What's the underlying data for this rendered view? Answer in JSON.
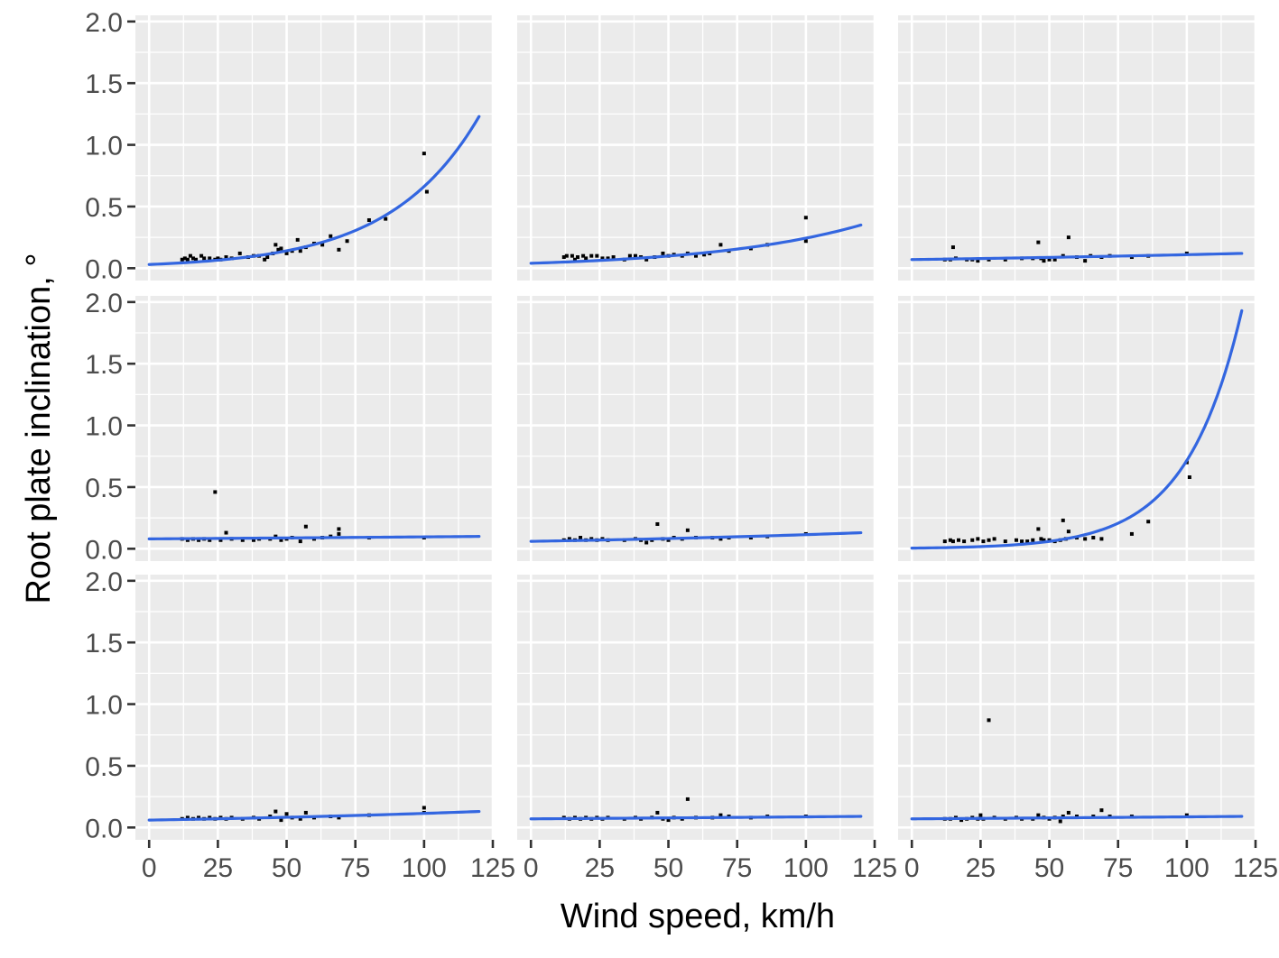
{
  "chart_data": {
    "type": "scatter",
    "layout": "facet-grid-3x3",
    "xlabel": "Wind speed, km/h",
    "ylabel": "Root plate inclination, °",
    "xlim": [
      -5,
      125
    ],
    "ylim": [
      -0.1,
      2.05
    ],
    "x_ticks": [
      0,
      25,
      50,
      75,
      100,
      125
    ],
    "x_tick_labels": [
      "0",
      "25",
      "50",
      "75",
      "100",
      "125"
    ],
    "y_ticks": [
      0.0,
      0.5,
      1.0,
      1.5,
      2.0
    ],
    "y_tick_labels": [
      "0.0",
      "0.5",
      "1.0",
      "1.5",
      "2.0"
    ],
    "grid": true,
    "background": "#ebebeb",
    "point_color": "#000000",
    "line_color": "#3366e0",
    "panels": [
      {
        "row": 0,
        "col": 0,
        "fit": {
          "type": "exponential",
          "x0": 0,
          "y0": 0.03,
          "x1": 120,
          "y1": 1.23
        },
        "points": [
          [
            12,
            0.07
          ],
          [
            13,
            0.08
          ],
          [
            14,
            0.07
          ],
          [
            15,
            0.1
          ],
          [
            16,
            0.08
          ],
          [
            17,
            0.07
          ],
          [
            19,
            0.1
          ],
          [
            20,
            0.08
          ],
          [
            22,
            0.08
          ],
          [
            24,
            0.07
          ],
          [
            25,
            0.08
          ],
          [
            26,
            0.07
          ],
          [
            28,
            0.09
          ],
          [
            30,
            0.08
          ],
          [
            33,
            0.12
          ],
          [
            36,
            0.09
          ],
          [
            38,
            0.1
          ],
          [
            40,
            0.1
          ],
          [
            42,
            0.07
          ],
          [
            43,
            0.09
          ],
          [
            45,
            0.12
          ],
          [
            46,
            0.19
          ],
          [
            47,
            0.15
          ],
          [
            48,
            0.16
          ],
          [
            50,
            0.12
          ],
          [
            52,
            0.14
          ],
          [
            54,
            0.23
          ],
          [
            55,
            0.14
          ],
          [
            57,
            0.17
          ],
          [
            60,
            0.2
          ],
          [
            63,
            0.19
          ],
          [
            66,
            0.26
          ],
          [
            69,
            0.15
          ],
          [
            72,
            0.22
          ],
          [
            80,
            0.39
          ],
          [
            86,
            0.4
          ],
          [
            100,
            0.93
          ],
          [
            101,
            0.62
          ]
        ]
      },
      {
        "row": 0,
        "col": 1,
        "fit": {
          "type": "exponential",
          "x0": 0,
          "y0": 0.04,
          "x1": 120,
          "y1": 0.35
        },
        "points": [
          [
            12,
            0.09
          ],
          [
            13,
            0.1
          ],
          [
            15,
            0.1
          ],
          [
            16,
            0.07
          ],
          [
            17,
            0.09
          ],
          [
            19,
            0.1
          ],
          [
            20,
            0.08
          ],
          [
            22,
            0.1
          ],
          [
            24,
            0.1
          ],
          [
            26,
            0.08
          ],
          [
            28,
            0.08
          ],
          [
            30,
            0.09
          ],
          [
            34,
            0.07
          ],
          [
            36,
            0.1
          ],
          [
            38,
            0.1
          ],
          [
            40,
            0.09
          ],
          [
            42,
            0.07
          ],
          [
            45,
            0.09
          ],
          [
            48,
            0.12
          ],
          [
            50,
            0.1
          ],
          [
            52,
            0.11
          ],
          [
            55,
            0.1
          ],
          [
            57,
            0.12
          ],
          [
            60,
            0.1
          ],
          [
            63,
            0.11
          ],
          [
            65,
            0.12
          ],
          [
            69,
            0.19
          ],
          [
            72,
            0.14
          ],
          [
            80,
            0.16
          ],
          [
            86,
            0.19
          ],
          [
            100,
            0.41
          ],
          [
            100,
            0.22
          ]
        ]
      },
      {
        "row": 0,
        "col": 2,
        "fit": {
          "type": "exponential",
          "x0": 0,
          "y0": 0.07,
          "x1": 120,
          "y1": 0.12
        },
        "points": [
          [
            12,
            0.07
          ],
          [
            14,
            0.07
          ],
          [
            15,
            0.17
          ],
          [
            16,
            0.08
          ],
          [
            20,
            0.07
          ],
          [
            22,
            0.07
          ],
          [
            24,
            0.06
          ],
          [
            28,
            0.07
          ],
          [
            34,
            0.07
          ],
          [
            40,
            0.08
          ],
          [
            44,
            0.08
          ],
          [
            46,
            0.21
          ],
          [
            47,
            0.08
          ],
          [
            48,
            0.06
          ],
          [
            50,
            0.07
          ],
          [
            52,
            0.07
          ],
          [
            55,
            0.1
          ],
          [
            57,
            0.25
          ],
          [
            60,
            0.09
          ],
          [
            63,
            0.06
          ],
          [
            65,
            0.1
          ],
          [
            69,
            0.09
          ],
          [
            72,
            0.1
          ],
          [
            80,
            0.09
          ],
          [
            86,
            0.1
          ],
          [
            100,
            0.12
          ]
        ]
      },
      {
        "row": 1,
        "col": 0,
        "fit": {
          "type": "exponential",
          "x0": 0,
          "y0": 0.08,
          "x1": 120,
          "y1": 0.1
        },
        "points": [
          [
            12,
            0.08
          ],
          [
            14,
            0.07
          ],
          [
            16,
            0.08
          ],
          [
            18,
            0.07
          ],
          [
            20,
            0.08
          ],
          [
            22,
            0.07
          ],
          [
            24,
            0.46
          ],
          [
            26,
            0.07
          ],
          [
            28,
            0.13
          ],
          [
            30,
            0.08
          ],
          [
            34,
            0.07
          ],
          [
            38,
            0.07
          ],
          [
            40,
            0.08
          ],
          [
            44,
            0.08
          ],
          [
            46,
            0.1
          ],
          [
            48,
            0.07
          ],
          [
            50,
            0.08
          ],
          [
            52,
            0.09
          ],
          [
            55,
            0.06
          ],
          [
            57,
            0.18
          ],
          [
            60,
            0.08
          ],
          [
            63,
            0.09
          ],
          [
            66,
            0.1
          ],
          [
            69,
            0.16
          ],
          [
            69,
            0.12
          ],
          [
            80,
            0.09
          ],
          [
            100,
            0.09
          ]
        ]
      },
      {
        "row": 1,
        "col": 1,
        "fit": {
          "type": "exponential",
          "x0": 0,
          "y0": 0.06,
          "x1": 120,
          "y1": 0.13
        },
        "points": [
          [
            12,
            0.07
          ],
          [
            14,
            0.08
          ],
          [
            16,
            0.07
          ],
          [
            18,
            0.09
          ],
          [
            20,
            0.07
          ],
          [
            22,
            0.08
          ],
          [
            24,
            0.07
          ],
          [
            26,
            0.08
          ],
          [
            28,
            0.07
          ],
          [
            34,
            0.07
          ],
          [
            38,
            0.08
          ],
          [
            40,
            0.07
          ],
          [
            42,
            0.05
          ],
          [
            44,
            0.07
          ],
          [
            46,
            0.2
          ],
          [
            48,
            0.08
          ],
          [
            50,
            0.07
          ],
          [
            52,
            0.09
          ],
          [
            55,
            0.08
          ],
          [
            57,
            0.15
          ],
          [
            60,
            0.09
          ],
          [
            66,
            0.09
          ],
          [
            69,
            0.08
          ],
          [
            72,
            0.09
          ],
          [
            80,
            0.09
          ],
          [
            86,
            0.1
          ],
          [
            100,
            0.12
          ]
        ]
      },
      {
        "row": 1,
        "col": 2,
        "fit": {
          "type": "exponential",
          "x0": 0,
          "y0": 0.005,
          "x1": 120,
          "y1": 1.93
        },
        "points": [
          [
            12,
            0.06
          ],
          [
            14,
            0.07
          ],
          [
            15,
            0.06
          ],
          [
            17,
            0.07
          ],
          [
            19,
            0.06
          ],
          [
            22,
            0.07
          ],
          [
            24,
            0.08
          ],
          [
            26,
            0.06
          ],
          [
            28,
            0.07
          ],
          [
            30,
            0.08
          ],
          [
            34,
            0.06
          ],
          [
            38,
            0.07
          ],
          [
            40,
            0.06
          ],
          [
            42,
            0.06
          ],
          [
            44,
            0.07
          ],
          [
            46,
            0.16
          ],
          [
            47,
            0.08
          ],
          [
            48,
            0.07
          ],
          [
            50,
            0.07
          ],
          [
            52,
            0.06
          ],
          [
            54,
            0.07
          ],
          [
            55,
            0.23
          ],
          [
            56,
            0.08
          ],
          [
            57,
            0.14
          ],
          [
            60,
            0.09
          ],
          [
            63,
            0.08
          ],
          [
            66,
            0.09
          ],
          [
            69,
            0.08
          ],
          [
            80,
            0.12
          ],
          [
            86,
            0.22
          ],
          [
            100,
            0.7
          ],
          [
            101,
            0.58
          ]
        ]
      },
      {
        "row": 2,
        "col": 0,
        "fit": {
          "type": "exponential",
          "x0": 0,
          "y0": 0.06,
          "x1": 120,
          "y1": 0.13
        },
        "points": [
          [
            12,
            0.07
          ],
          [
            14,
            0.08
          ],
          [
            16,
            0.07
          ],
          [
            18,
            0.08
          ],
          [
            20,
            0.07
          ],
          [
            22,
            0.08
          ],
          [
            24,
            0.07
          ],
          [
            26,
            0.08
          ],
          [
            28,
            0.07
          ],
          [
            30,
            0.08
          ],
          [
            34,
            0.07
          ],
          [
            38,
            0.08
          ],
          [
            40,
            0.07
          ],
          [
            44,
            0.09
          ],
          [
            46,
            0.13
          ],
          [
            48,
            0.06
          ],
          [
            50,
            0.11
          ],
          [
            52,
            0.08
          ],
          [
            55,
            0.07
          ],
          [
            57,
            0.12
          ],
          [
            60,
            0.08
          ],
          [
            66,
            0.09
          ],
          [
            69,
            0.08
          ],
          [
            80,
            0.1
          ],
          [
            100,
            0.16
          ],
          [
            100,
            0.12
          ]
        ]
      },
      {
        "row": 2,
        "col": 1,
        "fit": {
          "type": "exponential",
          "x0": 0,
          "y0": 0.07,
          "x1": 120,
          "y1": 0.09
        },
        "points": [
          [
            12,
            0.08
          ],
          [
            14,
            0.07
          ],
          [
            16,
            0.08
          ],
          [
            18,
            0.07
          ],
          [
            20,
            0.08
          ],
          [
            22,
            0.07
          ],
          [
            24,
            0.08
          ],
          [
            26,
            0.07
          ],
          [
            28,
            0.08
          ],
          [
            34,
            0.07
          ],
          [
            38,
            0.08
          ],
          [
            40,
            0.07
          ],
          [
            44,
            0.08
          ],
          [
            46,
            0.12
          ],
          [
            48,
            0.07
          ],
          [
            50,
            0.06
          ],
          [
            52,
            0.08
          ],
          [
            55,
            0.07
          ],
          [
            57,
            0.23
          ],
          [
            60,
            0.08
          ],
          [
            66,
            0.08
          ],
          [
            69,
            0.1
          ],
          [
            72,
            0.09
          ],
          [
            80,
            0.08
          ],
          [
            86,
            0.09
          ],
          [
            100,
            0.09
          ]
        ]
      },
      {
        "row": 2,
        "col": 2,
        "fit": {
          "type": "exponential",
          "x0": 0,
          "y0": 0.07,
          "x1": 120,
          "y1": 0.09
        },
        "points": [
          [
            12,
            0.07
          ],
          [
            14,
            0.07
          ],
          [
            16,
            0.08
          ],
          [
            18,
            0.06
          ],
          [
            20,
            0.07
          ],
          [
            22,
            0.08
          ],
          [
            24,
            0.07
          ],
          [
            25,
            0.1
          ],
          [
            26,
            0.07
          ],
          [
            28,
            0.87
          ],
          [
            30,
            0.08
          ],
          [
            34,
            0.07
          ],
          [
            38,
            0.08
          ],
          [
            40,
            0.07
          ],
          [
            44,
            0.07
          ],
          [
            46,
            0.1
          ],
          [
            48,
            0.08
          ],
          [
            50,
            0.07
          ],
          [
            52,
            0.08
          ],
          [
            54,
            0.05
          ],
          [
            55,
            0.09
          ],
          [
            57,
            0.12
          ],
          [
            60,
            0.09
          ],
          [
            66,
            0.09
          ],
          [
            69,
            0.14
          ],
          [
            72,
            0.09
          ],
          [
            80,
            0.09
          ],
          [
            100,
            0.1
          ]
        ]
      }
    ]
  }
}
